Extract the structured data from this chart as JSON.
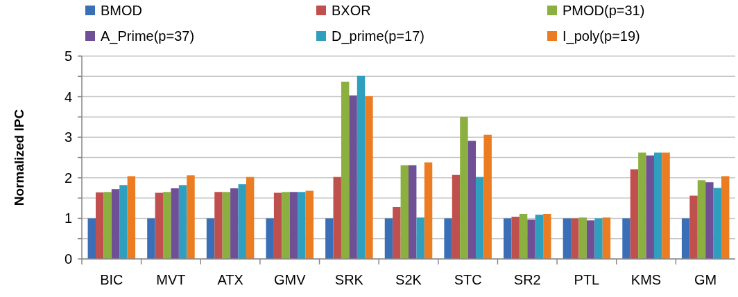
{
  "chart_data": {
    "type": "bar",
    "ylabel": "Normalized IPC",
    "categories": [
      "BIC",
      "MVT",
      "ATX",
      "GMV",
      "SRK",
      "S2K",
      "STC",
      "SR2",
      "PTL",
      "KMS",
      "GM"
    ],
    "series": [
      {
        "name": "BMOD",
        "color": "#3a6fb8",
        "values": [
          1,
          1,
          1,
          1,
          1,
          1,
          1,
          1,
          1,
          1,
          1
        ]
      },
      {
        "name": "BXOR",
        "color": "#c0504d",
        "values": [
          1.64,
          1.63,
          1.65,
          1.63,
          2.02,
          1.28,
          2.07,
          1.04,
          1.0,
          2.21,
          1.56
        ]
      },
      {
        "name": "PMOD(p=31)",
        "color": "#8cb040",
        "values": [
          1.65,
          1.65,
          1.65,
          1.65,
          4.37,
          2.31,
          3.5,
          1.11,
          1.02,
          2.62,
          1.94
        ]
      },
      {
        "name": "A_Prime(p=37)",
        "color": "#6f4f96",
        "values": [
          1.72,
          1.74,
          1.74,
          1.65,
          4.03,
          2.31,
          2.91,
          0.97,
          0.95,
          2.55,
          1.89
        ]
      },
      {
        "name": "D_prime(p=17)",
        "color": "#2f9fbf",
        "values": [
          1.82,
          1.82,
          1.84,
          1.65,
          4.51,
          1.02,
          2.02,
          1.09,
          1.0,
          2.62,
          1.75
        ]
      },
      {
        "name": "I_poly(p=19)",
        "color": "#ec7c22",
        "values": [
          2.04,
          2.06,
          2.02,
          1.68,
          4.01,
          2.38,
          3.06,
          1.11,
          1.02,
          2.62,
          2.04
        ]
      }
    ],
    "ylim": [
      0,
      5
    ],
    "yticks": [
      0,
      {
        "value": 0.5,
        "label": null
      },
      1,
      {
        "value": 1.5,
        "label": null
      },
      2,
      {
        "value": 2.5,
        "label": null
      },
      3,
      {
        "value": 3.5,
        "label": null
      },
      4,
      {
        "value": 4.5,
        "label": null
      },
      5
    ],
    "grid": "y",
    "legend": "top"
  }
}
